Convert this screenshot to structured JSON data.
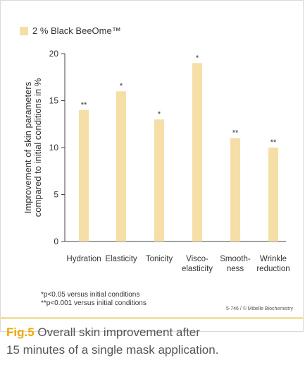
{
  "legend": {
    "label": "2 % Black BeeOme™",
    "color": "#f5dfa6"
  },
  "chart_data": {
    "type": "bar",
    "title": "",
    "xlabel": "",
    "ylabel": [
      "Improvement of skin parameters",
      "compared to initial conditions in %"
    ],
    "ylim": [
      0,
      20
    ],
    "yticks": [
      0,
      5,
      10,
      15,
      20
    ],
    "grid": false,
    "legend_position": "top-left",
    "categories": [
      [
        "Hydration"
      ],
      [
        "Elasticity"
      ],
      [
        "Tonicity"
      ],
      [
        "Visco-",
        "elasticity"
      ],
      [
        "Smooth-",
        "ness"
      ],
      [
        "Wrinkle",
        "reduction"
      ]
    ],
    "series": [
      {
        "name": "2 % Black BeeOme™",
        "color": "#f5dfa6",
        "values": [
          14,
          16,
          13,
          19,
          11,
          10
        ]
      }
    ],
    "significance": [
      "**",
      "*",
      "*",
      "*",
      "**",
      "**"
    ]
  },
  "footnotes": [
    "*p<0.05 versus initial conditions",
    "**p<0.001 versus initial conditions"
  ],
  "credit": "5-746 / © Mibelle Biochemistry",
  "caption": {
    "fig_label": "Fig.5",
    "line1": "Overall skin improvement after",
    "line2": "15 minutes of a single mask application."
  }
}
